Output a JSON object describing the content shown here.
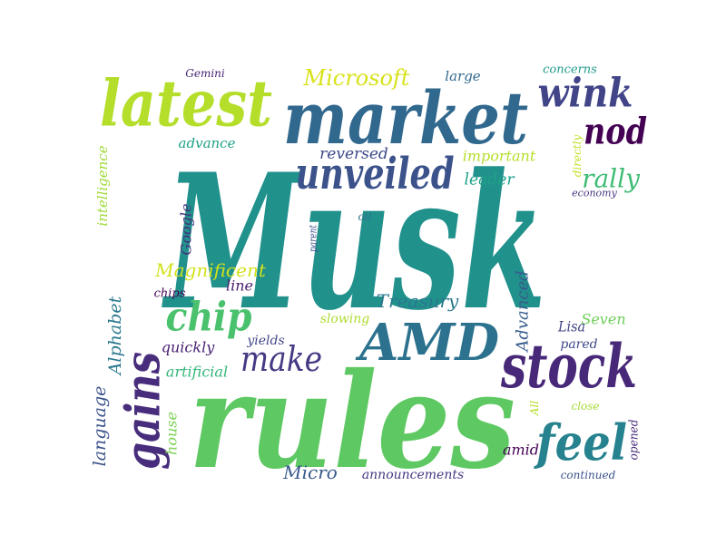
{
  "words": [
    {
      "text": "Musk",
      "color": "#21918c"
    },
    {
      "text": "rules",
      "color": "#5ec962"
    },
    {
      "text": "market",
      "color": "#31688e"
    },
    {
      "text": "latest",
      "color": "#b5de2b"
    },
    {
      "text": "unveiled",
      "color": "#3b528b"
    },
    {
      "text": "AMD",
      "color": "#2c728e"
    },
    {
      "text": "stock",
      "color": "#482878"
    },
    {
      "text": "gains",
      "color": "#472d7b"
    },
    {
      "text": "feel",
      "color": "#26828e"
    },
    {
      "text": "chip",
      "color": "#4ac16d"
    },
    {
      "text": "make",
      "color": "#443983"
    },
    {
      "text": "wink",
      "color": "#414487"
    },
    {
      "text": "nod",
      "color": "#440154"
    },
    {
      "text": "Microsoft",
      "color": "#d8e219"
    },
    {
      "text": "rally",
      "color": "#3dbc74"
    },
    {
      "text": "Treasury",
      "color": "#2a788e"
    },
    {
      "text": "Google",
      "color": "#46327e"
    },
    {
      "text": "Magnificent",
      "color": "#d2e21b"
    },
    {
      "text": "Alphabet",
      "color": "#2a788e"
    },
    {
      "text": "language",
      "color": "#3b528b"
    },
    {
      "text": "Advanced",
      "color": "#365c8d"
    },
    {
      "text": "intelligence",
      "color": "#a0da39"
    },
    {
      "text": "artificial",
      "color": "#35b779"
    },
    {
      "text": "Micro",
      "color": "#38598c"
    },
    {
      "text": "house",
      "color": "#7ad151"
    },
    {
      "text": "reversed",
      "color": "#3e4989"
    },
    {
      "text": "important",
      "color": "#b5de2b"
    },
    {
      "text": "leader",
      "color": "#1fa187"
    },
    {
      "text": "advance",
      "color": "#1fa187"
    },
    {
      "text": "Seven",
      "color": "#6ece58"
    },
    {
      "text": "Lisa",
      "color": "#414487"
    },
    {
      "text": "pared",
      "color": "#3e4989"
    },
    {
      "text": "quickly",
      "color": "#482173"
    },
    {
      "text": "line",
      "color": "#481b6d"
    },
    {
      "text": "chips",
      "color": "#440154"
    },
    {
      "text": "yields",
      "color": "#404688"
    },
    {
      "text": "slowing",
      "color": "#addc30"
    },
    {
      "text": "amid",
      "color": "#440154"
    },
    {
      "text": "announcements",
      "color": "#443983"
    },
    {
      "text": "continued",
      "color": "#3b528b"
    },
    {
      "text": "opened",
      "color": "#472c7a"
    },
    {
      "text": "close",
      "color": "#a5db36"
    },
    {
      "text": "All",
      "color": "#b5de2b"
    },
    {
      "text": "Gemini",
      "color": "#482475"
    },
    {
      "text": "large",
      "color": "#31688e"
    },
    {
      "text": "concerns",
      "color": "#1f9a8a"
    },
    {
      "text": "directly",
      "color": "#c2df23"
    },
    {
      "text": "economy",
      "color": "#46337f"
    },
    {
      "text": "parent",
      "color": "#3b528b"
    },
    {
      "text": "oil",
      "color": "#2c728e"
    }
  ]
}
